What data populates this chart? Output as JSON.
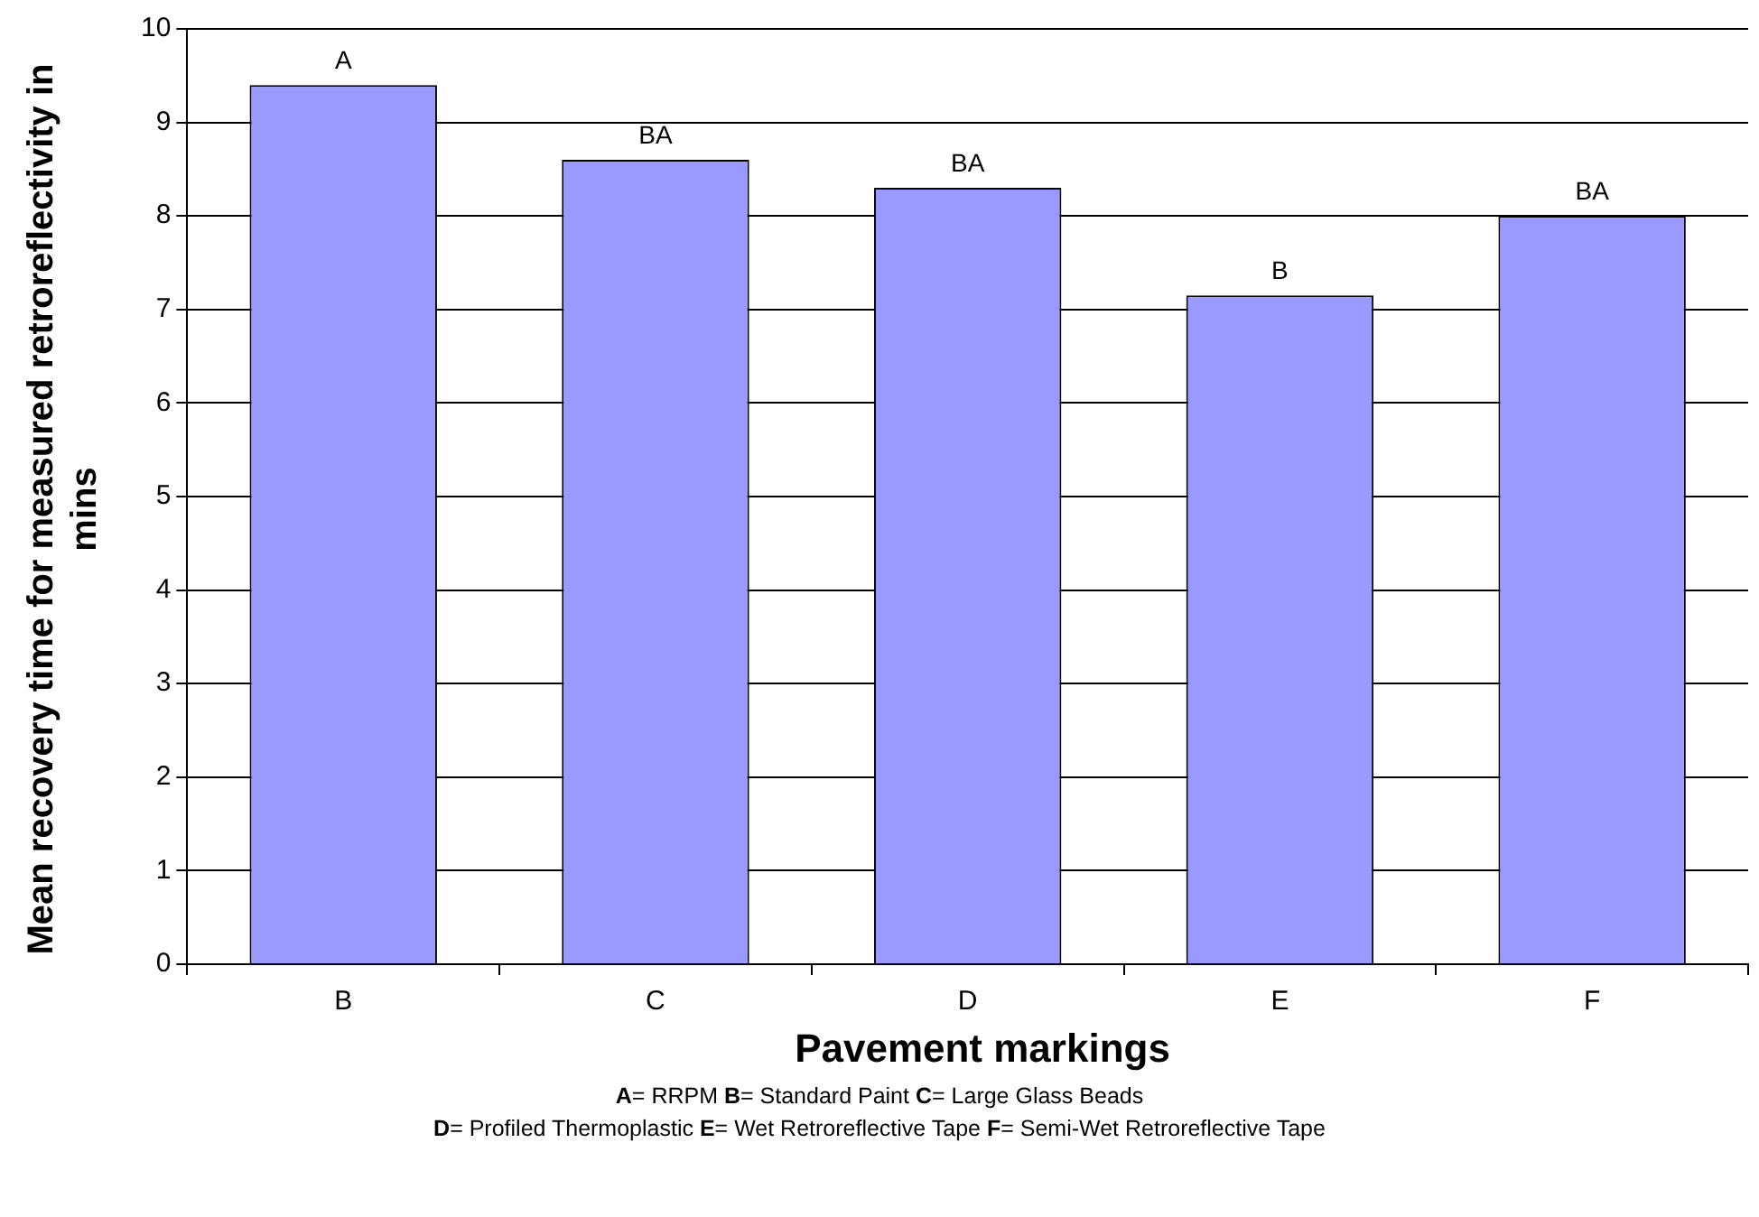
{
  "chart_data": {
    "type": "bar",
    "xlabel": "Pavement markings",
    "ylabel": "Mean recovery time for measured retroreflectivity in mins",
    "categories": [
      "B",
      "C",
      "D",
      "E",
      "F"
    ],
    "values": [
      9.4,
      8.6,
      8.3,
      7.15,
      8.0
    ],
    "color": "#9999ff",
    "ylim": [
      0,
      10
    ],
    "yticks": [
      0,
      1,
      2,
      3,
      4,
      5,
      6,
      7,
      8,
      9,
      10
    ],
    "grid": "y",
    "legend": false,
    "annotations": [
      {
        "text": "A",
        "x": "B",
        "y": 9.4
      },
      {
        "text": "BA",
        "x": "C",
        "y": 8.6
      },
      {
        "text": "BA",
        "x": "D",
        "y": 8.3
      },
      {
        "text": "B",
        "x": "E",
        "y": 7.15
      },
      {
        "text": "BA",
        "x": "F",
        "y": 8.0
      },
      "A= RRPM  B= Standard Paint  C= Large Glass Beads",
      "D= Profiled Thermoplastic  E= Wet Retroreflective Tape  F= Semi-Wet Retroreflective Tape"
    ]
  }
}
